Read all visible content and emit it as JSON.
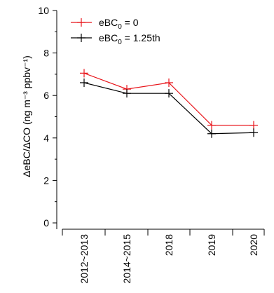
{
  "chart_data": {
    "type": "line",
    "categories": [
      "2012~2013",
      "2014~2015",
      "2018",
      "2019",
      "2020"
    ],
    "series": [
      {
        "name": "eBC0 = 0",
        "name_prefix": "eBC",
        "name_sub": "0",
        "name_suffix": " = 0",
        "color": "#e8151b",
        "values": [
          7.05,
          6.3,
          6.6,
          4.6,
          4.6
        ]
      },
      {
        "name": "eBC0 = 1.25th",
        "name_prefix": "eBC",
        "name_sub": "0",
        "name_suffix": " = 1.25th",
        "color": "#000000",
        "values": [
          6.6,
          6.1,
          6.1,
          4.2,
          4.25
        ]
      }
    ],
    "ylabel": "ΔeBC/ΔCO (ng m⁻³ ppbv⁻¹)",
    "ylim": [
      0,
      10
    ],
    "yticks": [
      0,
      2,
      4,
      6,
      8,
      10
    ],
    "grid": false,
    "legend": "top-left",
    "markers": "plus"
  }
}
